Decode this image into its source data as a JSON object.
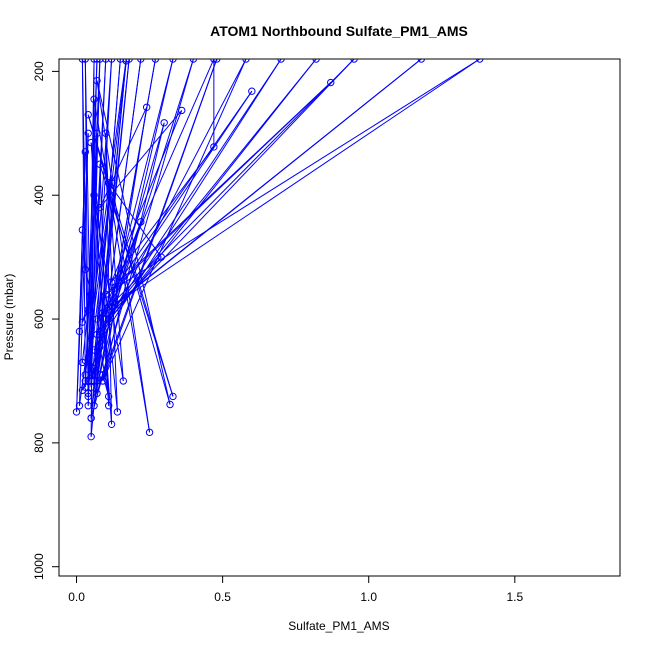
{
  "chart_data": {
    "type": "line",
    "title": "ATOM1 Northbound Sulfate_PM1_AMS",
    "xlabel": "Sulfate_PM1_AMS",
    "ylabel": "Pressure (mbar)",
    "xlim": [
      -0.06,
      1.86
    ],
    "ylim": [
      1015,
      180
    ],
    "y_reversed": true,
    "x_ticks": [
      0.0,
      0.5,
      1.0,
      1.5
    ],
    "x_tick_labels": [
      "0.0",
      "0.5",
      "1.0",
      "1.5"
    ],
    "y_ticks": [
      200,
      400,
      600,
      800,
      1000
    ],
    "y_tick_labels": [
      "200",
      "400",
      "600",
      "800",
      "1000"
    ],
    "grid": false,
    "series": [
      {
        "color": "#0000ff",
        "marker": "open-circle",
        "points": [
          [
            0.03,
            700
          ],
          [
            0.02,
            180
          ],
          [
            0.04,
            720
          ],
          [
            0.03,
            180
          ],
          [
            0.05,
            690
          ],
          [
            0.06,
            180
          ],
          [
            0.04,
            740
          ],
          [
            0.07,
            180
          ],
          [
            0.03,
            710
          ],
          [
            0.08,
            180
          ],
          [
            0.05,
            700
          ],
          [
            0.1,
            180
          ],
          [
            0.04,
            725
          ],
          [
            0.12,
            180
          ],
          [
            0.06,
            700
          ],
          [
            0.15,
            180
          ],
          [
            0.05,
            760
          ],
          [
            0.18,
            180
          ],
          [
            0.07,
            700
          ],
          [
            0.22,
            180
          ],
          [
            0.06,
            740
          ],
          [
            0.27,
            180
          ],
          [
            0.08,
            690
          ],
          [
            0.33,
            180
          ],
          [
            0.05,
            700
          ],
          [
            0.4,
            180
          ],
          [
            0.07,
            720
          ],
          [
            0.48,
            180
          ],
          [
            0.09,
            700
          ],
          [
            0.58,
            180
          ],
          [
            0.06,
            650
          ],
          [
            0.7,
            180
          ],
          [
            0.08,
            620
          ],
          [
            0.82,
            180
          ],
          [
            0.1,
            600
          ],
          [
            0.95,
            180
          ],
          [
            0.07,
            600
          ],
          [
            1.18,
            180
          ],
          [
            0.12,
            580
          ],
          [
            1.38,
            180
          ],
          [
            0.1,
            560
          ],
          [
            0.87,
            218
          ],
          [
            0.13,
            550
          ],
          [
            0.6,
            232
          ],
          [
            0.09,
            590
          ],
          [
            0.47,
            180
          ],
          [
            0.47,
            322
          ],
          [
            0.12,
            540
          ],
          [
            0.36,
            263
          ],
          [
            0.08,
            420
          ],
          [
            0.24,
            258
          ],
          [
            0.09,
            700
          ],
          [
            0.3,
            283
          ],
          [
            0.11,
            600
          ],
          [
            0.22,
            443
          ],
          [
            0.07,
            625
          ],
          [
            0.29,
            500
          ],
          [
            0.11,
            380
          ],
          [
            0.16,
            700
          ],
          [
            0.06,
            400
          ],
          [
            0.12,
            770
          ],
          [
            0.1,
            300
          ],
          [
            0.14,
            750
          ],
          [
            0.05,
            315
          ],
          [
            0.11,
            740
          ],
          [
            0.08,
            350
          ],
          [
            0.33,
            725
          ],
          [
            0.04,
            270
          ],
          [
            0.32,
            738
          ],
          [
            0.07,
            215
          ],
          [
            0.25,
            783
          ],
          [
            0.06,
            245
          ],
          [
            0.05,
            790
          ],
          [
            0.17,
            180
          ],
          [
            0.01,
            740
          ],
          [
            0.04,
            300
          ],
          [
            0.0,
            750
          ],
          [
            0.03,
            330
          ],
          [
            0.01,
            620
          ],
          [
            0.02,
            456
          ],
          [
            0.03,
            520
          ],
          [
            0.05,
            560
          ],
          [
            0.02,
            605
          ],
          [
            0.04,
            585
          ],
          [
            0.02,
            670
          ],
          [
            0.06,
            680
          ],
          [
            0.02,
            715
          ],
          [
            0.08,
            645
          ],
          [
            0.11,
            725
          ],
          [
            0.09,
            690
          ],
          [
            0.05,
            760
          ],
          [
            0.17,
            183
          ],
          [
            0.04,
            700
          ],
          [
            0.07,
            300
          ],
          [
            0.05,
            710
          ],
          [
            0.12,
            380
          ],
          [
            0.03,
            690
          ]
        ]
      }
    ]
  }
}
